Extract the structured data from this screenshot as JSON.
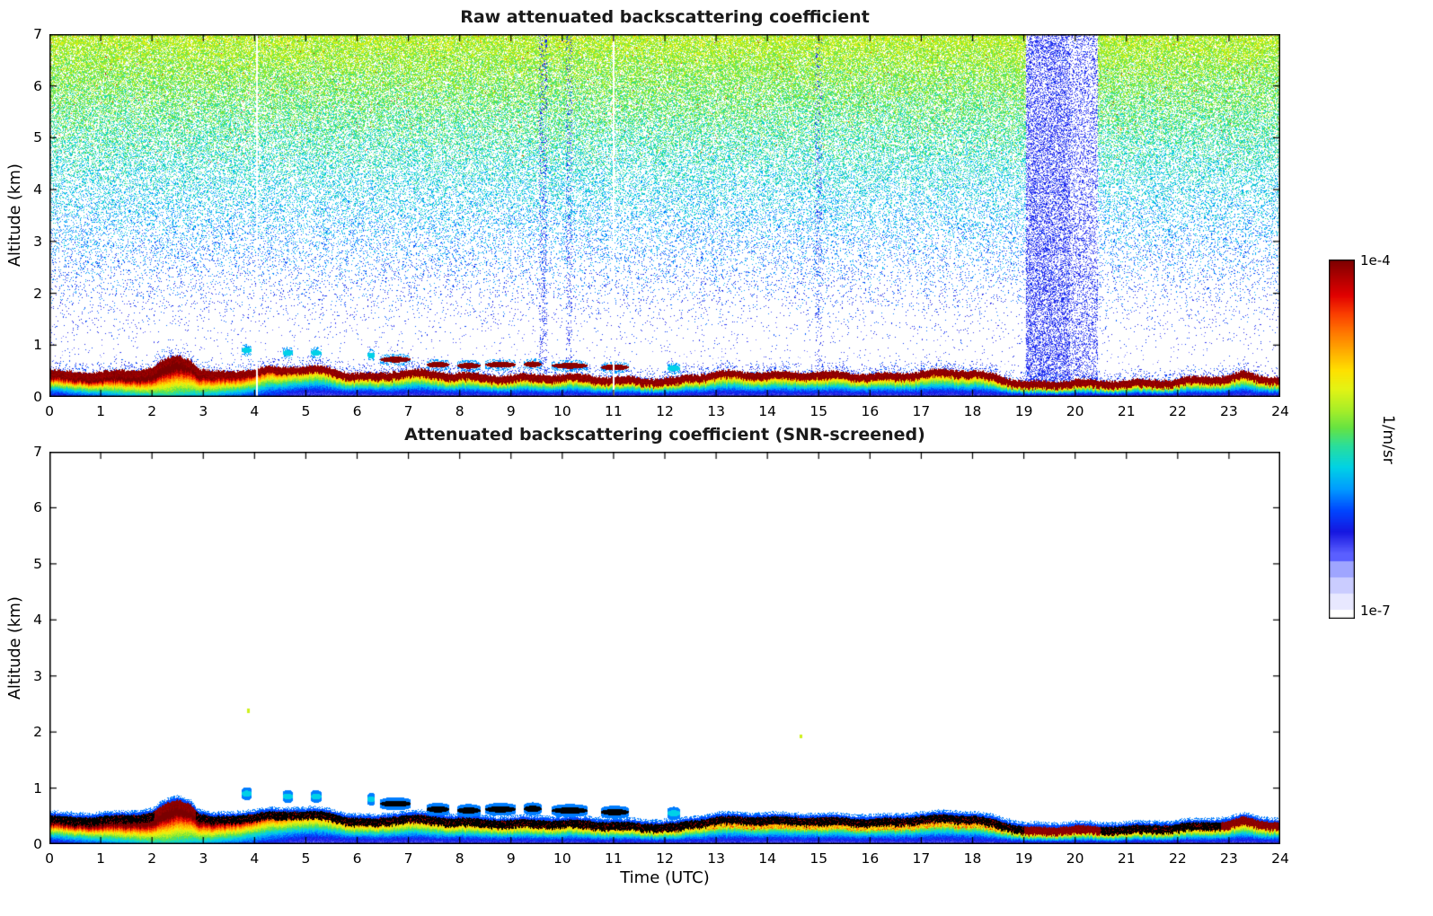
{
  "figure": {
    "background": "#ffffff",
    "text_color": "#000000",
    "panels": [
      {
        "id": "raw",
        "title": "Raw attenuated backscattering coefficient"
      },
      {
        "id": "screened",
        "title": "Attenuated backscattering coefficient (SNR-screened)"
      }
    ],
    "xlabel": "Time (UTC)",
    "ylabel": "Altitude (km)",
    "x_ticks": [
      0,
      1,
      2,
      3,
      4,
      5,
      6,
      7,
      8,
      9,
      10,
      11,
      12,
      13,
      14,
      15,
      16,
      17,
      18,
      19,
      20,
      21,
      22,
      23,
      24
    ],
    "y_ticks": [
      0,
      1,
      2,
      3,
      4,
      5,
      6,
      7
    ],
    "colorbar": {
      "max_label": "1e-4",
      "min_label": "1e-7",
      "unit": "1/m/sr",
      "stops": [
        [
          0.0,
          "#ffffff"
        ],
        [
          0.05,
          "#e6e6ff"
        ],
        [
          0.1,
          "#c3c6ff"
        ],
        [
          0.14,
          "#9aa0ff"
        ],
        [
          0.18,
          "#5a5fff"
        ],
        [
          0.24,
          "#1616e0"
        ],
        [
          0.3,
          "#0046ff"
        ],
        [
          0.36,
          "#009cff"
        ],
        [
          0.42,
          "#00d2e6"
        ],
        [
          0.48,
          "#2ade9b"
        ],
        [
          0.53,
          "#66e342"
        ],
        [
          0.58,
          "#a8ee28"
        ],
        [
          0.64,
          "#e4f314"
        ],
        [
          0.69,
          "#ffe100"
        ],
        [
          0.74,
          "#ffb000"
        ],
        [
          0.8,
          "#ff7300"
        ],
        [
          0.85,
          "#fa3c00"
        ],
        [
          0.9,
          "#e10000"
        ],
        [
          0.95,
          "#b00000"
        ],
        [
          1.0,
          "#7a0000"
        ]
      ]
    }
  },
  "chart_data": [
    {
      "type": "heatmap",
      "panel": "raw",
      "title": "Raw attenuated backscattering coefficient",
      "xlabel": "Time (UTC)",
      "ylabel": "Altitude (km)",
      "x_range": [
        0,
        24
      ],
      "y_range": [
        0,
        7
      ],
      "value_scale": "log10",
      "vmin": 1e-07,
      "vmax": 0.0001,
      "units": "1/m/sr",
      "aerosol_layer_top_km": [
        [
          0,
          0.5
        ],
        [
          0.5,
          0.48
        ],
        [
          1,
          0.5
        ],
        [
          1.5,
          0.52
        ],
        [
          2,
          0.56
        ],
        [
          2.3,
          0.72
        ],
        [
          2.5,
          0.78
        ],
        [
          2.75,
          0.72
        ],
        [
          2.9,
          0.55
        ],
        [
          3.2,
          0.48
        ],
        [
          3.6,
          0.52
        ],
        [
          4,
          0.55
        ],
        [
          4.5,
          0.58
        ],
        [
          5,
          0.58
        ],
        [
          5.5,
          0.55
        ],
        [
          5.9,
          0.48
        ],
        [
          6.3,
          0.45
        ],
        [
          6.7,
          0.5
        ],
        [
          7,
          0.52
        ],
        [
          7.5,
          0.48
        ],
        [
          8,
          0.46
        ],
        [
          9,
          0.44
        ],
        [
          10,
          0.42
        ],
        [
          11,
          0.4
        ],
        [
          11.7,
          0.37
        ],
        [
          12.2,
          0.36
        ],
        [
          13,
          0.48
        ],
        [
          14,
          0.5
        ],
        [
          15,
          0.47
        ],
        [
          16,
          0.45
        ],
        [
          17,
          0.5
        ],
        [
          17.5,
          0.52
        ],
        [
          18,
          0.5
        ],
        [
          18.4,
          0.44
        ],
        [
          19,
          0.32
        ],
        [
          19.5,
          0.3
        ],
        [
          20,
          0.33
        ],
        [
          20.5,
          0.3
        ],
        [
          21,
          0.33
        ],
        [
          21.7,
          0.35
        ],
        [
          22.3,
          0.37
        ],
        [
          23,
          0.4
        ],
        [
          23.3,
          0.48
        ],
        [
          23.6,
          0.42
        ],
        [
          24,
          0.4
        ]
      ],
      "morning_plume": {
        "t_peak": 2.3,
        "t_span": 2.6,
        "strength": 0.45
      },
      "cloud_segments": [
        {
          "t0": 6.45,
          "t1": 7.05,
          "h": 0.72,
          "strong": true
        },
        {
          "t0": 7.35,
          "t1": 7.8,
          "h": 0.62,
          "strong": true
        },
        {
          "t0": 7.95,
          "t1": 8.4,
          "h": 0.6,
          "strong": true
        },
        {
          "t0": 8.5,
          "t1": 9.1,
          "h": 0.62,
          "strong": true
        },
        {
          "t0": 9.25,
          "t1": 9.6,
          "h": 0.63,
          "strong": true
        },
        {
          "t0": 9.8,
          "t1": 10.5,
          "h": 0.6,
          "strong": true
        },
        {
          "t0": 10.75,
          "t1": 11.3,
          "h": 0.57,
          "strong": true
        },
        {
          "t0": 12.05,
          "t1": 12.3,
          "h": 0.55,
          "strong": false
        },
        {
          "t0": 3.75,
          "t1": 3.95,
          "h": 0.9,
          "strong": false
        },
        {
          "t0": 4.55,
          "t1": 4.75,
          "h": 0.85,
          "strong": false
        },
        {
          "t0": 5.1,
          "t1": 5.3,
          "h": 0.85,
          "strong": false
        },
        {
          "t0": 6.2,
          "t1": 6.35,
          "h": 0.8,
          "strong": false
        }
      ],
      "attenuated_columns": [
        {
          "t0": 19.05,
          "t1": 19.9,
          "density": 0.45
        },
        {
          "t0": 19.9,
          "t1": 20.45,
          "density": 0.28
        }
      ],
      "faint_columns": [
        {
          "t0": 9.55,
          "t1": 9.7,
          "density": 0.15
        },
        {
          "t0": 10.08,
          "t1": 10.2,
          "density": 0.12
        },
        {
          "t0": 14.93,
          "t1": 15.07,
          "density": 0.1
        }
      ],
      "missing_profile_times": [
        4.05,
        11.0
      ],
      "noise": {
        "description": "Range-dependent shot-noise speckle on white background; dot density and brightness (blue -> cyan -> green -> yellow, sparse red) increase with altitude up to 7 km",
        "max_density": 0.82
      }
    },
    {
      "type": "heatmap",
      "panel": "screened",
      "title": "Attenuated backscattering coefficient (SNR-screened)",
      "xlabel": "Time (UTC)",
      "ylabel": "Altitude (km)",
      "x_range": [
        0,
        24
      ],
      "y_range": [
        0,
        7
      ],
      "value_scale": "log10",
      "vmin": 1e-07,
      "vmax": 0.0001,
      "units": "1/m/sr",
      "scene": "Same boundary-layer aerosol and cloud scene as the raw panel with all free-atmosphere noise screened out (white above the layer)",
      "saturated_black_intervals": [
        [
          0,
          2.05
        ],
        [
          2.85,
          19.0
        ],
        [
          20.5,
          22.85
        ]
      ],
      "residual_specks": [
        [
          3.88,
          2.38
        ],
        [
          14.66,
          1.92
        ]
      ]
    }
  ]
}
